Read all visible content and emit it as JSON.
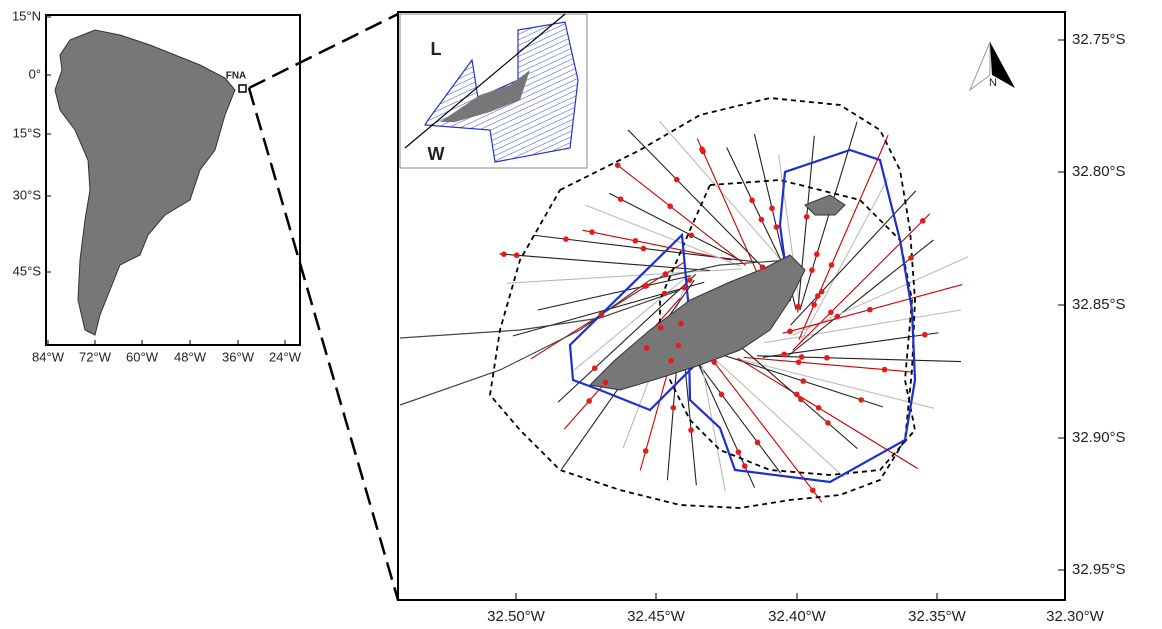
{
  "left_map": {
    "y_ticks": [
      "15°N",
      "0°",
      "15°S",
      "30°S",
      "45°S"
    ],
    "x_ticks": [
      "84°W",
      "72°W",
      "60°W",
      "48°W",
      "36°W",
      "24°W"
    ],
    "marker_label": "FNA"
  },
  "inset": {
    "label_top": "L",
    "label_bottom": "W"
  },
  "main_map": {
    "y_ticks": [
      "32.75°S",
      "32.80°S",
      "32.85°S",
      "32.90°S",
      "32.95°S"
    ],
    "x_ticks": [
      "32.50°W",
      "32.45°W",
      "32.40°W",
      "32.35°W",
      "32.30°W"
    ],
    "north_label": "N"
  }
}
